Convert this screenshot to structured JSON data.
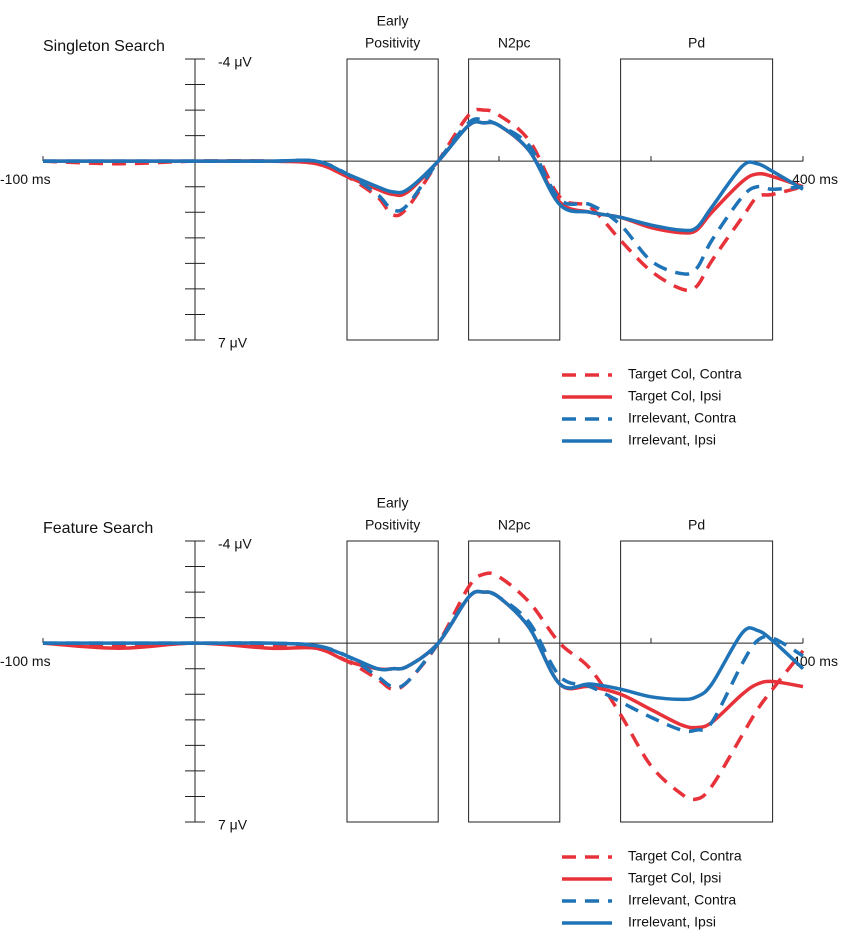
{
  "chart_data": [
    {
      "type": "line",
      "title": "Singleton Search",
      "invert_y": true,
      "legend": "bottom-right",
      "ylim": [
        -4,
        7
      ],
      "yticks": [
        {
          "value": -4,
          "label": "-4 μV"
        },
        {
          "value": 7,
          "label": "7 μV"
        }
      ],
      "minor_yticks": [
        -3,
        -2,
        -1,
        0,
        1,
        2,
        3,
        4,
        5,
        6
      ],
      "xlim": [
        -100,
        400
      ],
      "xticks": [
        {
          "value": -100,
          "label": "-100 ms"
        },
        {
          "value": 400,
          "label": "400 ms"
        }
      ],
      "minor_xticks": [
        0,
        100,
        200,
        300
      ],
      "regions": [
        {
          "label_lines": [
            "Early",
            "Positivity"
          ],
          "start": 100,
          "end": 160
        },
        {
          "label_lines": [
            "N2pc"
          ],
          "start": 180,
          "end": 240
        },
        {
          "label_lines": [
            "Pd"
          ],
          "start": 280,
          "end": 380
        }
      ],
      "x": [
        -100,
        -50,
        0,
        50,
        80,
        100,
        120,
        130,
        140,
        160,
        180,
        190,
        200,
        220,
        240,
        260,
        280,
        300,
        320,
        330,
        340,
        360,
        370,
        380,
        400
      ],
      "series": [
        {
          "name": "Target Col, Contra",
          "color": "#e8323a",
          "dashed": true,
          "values": [
            0,
            0.1,
            0,
            0,
            0.1,
            0.6,
            1.4,
            2.1,
            1.8,
            0,
            -1.8,
            -2.0,
            -1.8,
            -0.8,
            1.4,
            1.8,
            3.1,
            4.3,
            5.0,
            4.9,
            3.9,
            2.2,
            1.4,
            1.3,
            1.0
          ]
        },
        {
          "name": "Target Col, Ipsi",
          "color": "#e8323a",
          "dashed": false,
          "values": [
            0,
            0,
            0,
            0,
            0.1,
            0.6,
            1.1,
            1.3,
            1.2,
            0,
            -1.4,
            -1.5,
            -1.4,
            -0.4,
            1.6,
            2.0,
            2.2,
            2.6,
            2.8,
            2.7,
            2.0,
            0.8,
            0.5,
            0.6,
            1.0
          ]
        },
        {
          "name": "Irrelevant, Contra",
          "color": "#1f73b7",
          "dashed": true,
          "values": [
            0,
            0,
            0,
            0,
            0,
            0.5,
            1.3,
            1.9,
            1.7,
            0,
            -1.5,
            -1.6,
            -1.4,
            -0.6,
            1.5,
            1.7,
            2.5,
            3.9,
            4.4,
            4.2,
            3.1,
            1.4,
            1.0,
            1.1,
            1.0
          ]
        },
        {
          "name": "Irrelevant, Ipsi",
          "color": "#1f73b7",
          "dashed": false,
          "values": [
            0,
            0,
            0,
            0,
            0,
            0.5,
            1.0,
            1.2,
            1.1,
            0,
            -1.4,
            -1.5,
            -1.4,
            -0.4,
            1.7,
            2.0,
            2.2,
            2.5,
            2.7,
            2.6,
            1.8,
            0.2,
            0.1,
            0.4,
            1.1
          ]
        }
      ]
    },
    {
      "type": "line",
      "title": "Feature Search",
      "invert_y": true,
      "legend": "bottom-right",
      "ylim": [
        -4,
        7
      ],
      "yticks": [
        {
          "value": -4,
          "label": "-4 μV"
        },
        {
          "value": 7,
          "label": "7 μV"
        }
      ],
      "minor_yticks": [
        -3,
        -2,
        -1,
        0,
        1,
        2,
        3,
        4,
        5,
        6
      ],
      "xlim": [
        -100,
        400
      ],
      "xticks": [
        {
          "value": -100,
          "label": "-100 ms"
        },
        {
          "value": 400,
          "label": "400 ms"
        }
      ],
      "minor_xticks": [
        0,
        100,
        200,
        300
      ],
      "regions": [
        {
          "label_lines": [
            "Early",
            "Positivity"
          ],
          "start": 100,
          "end": 160
        },
        {
          "label_lines": [
            "N2pc"
          ],
          "start": 180,
          "end": 240
        },
        {
          "label_lines": [
            "Pd"
          ],
          "start": 280,
          "end": 380
        }
      ],
      "x": [
        -100,
        -50,
        0,
        50,
        80,
        100,
        120,
        130,
        140,
        160,
        180,
        190,
        200,
        220,
        240,
        260,
        280,
        300,
        320,
        330,
        340,
        360,
        370,
        380,
        400
      ],
      "series": [
        {
          "name": "Target Col, Contra",
          "color": "#e8323a",
          "dashed": true,
          "values": [
            0,
            0.1,
            0,
            0.1,
            0.2,
            0.7,
            1.4,
            1.8,
            1.5,
            0,
            -2.2,
            -2.7,
            -2.6,
            -1.6,
            0,
            1.0,
            2.8,
            4.8,
            5.9,
            6.1,
            5.6,
            3.6,
            2.6,
            1.8,
            0.3
          ]
        },
        {
          "name": "Target Col, Ipsi",
          "color": "#e8323a",
          "dashed": false,
          "values": [
            0,
            0.2,
            0,
            0.2,
            0.2,
            0.7,
            1.0,
            1.0,
            0.9,
            0,
            -1.8,
            -2.0,
            -1.8,
            -0.6,
            1.6,
            1.7,
            2.0,
            2.6,
            3.2,
            3.3,
            3.1,
            2.0,
            1.6,
            1.5,
            1.7
          ]
        },
        {
          "name": "Irrelevant, Contra",
          "color": "#1f73b7",
          "dashed": true,
          "values": [
            0,
            0,
            0,
            0,
            0.1,
            0.5,
            1.3,
            1.7,
            1.5,
            0,
            -1.8,
            -2.0,
            -1.8,
            -0.8,
            1.3,
            1.7,
            2.3,
            2.9,
            3.4,
            3.4,
            3.1,
            0.8,
            -0.1,
            -0.2,
            0.5
          ]
        },
        {
          "name": "Irrelevant, Ipsi",
          "color": "#1f73b7",
          "dashed": false,
          "values": [
            0,
            0,
            0,
            0,
            0.1,
            0.5,
            1.0,
            1.0,
            0.9,
            0,
            -1.8,
            -2.0,
            -1.8,
            -0.6,
            1.6,
            1.6,
            1.8,
            2.1,
            2.2,
            2.1,
            1.6,
            -0.4,
            -0.5,
            -0.1,
            1.0
          ]
        }
      ]
    }
  ]
}
